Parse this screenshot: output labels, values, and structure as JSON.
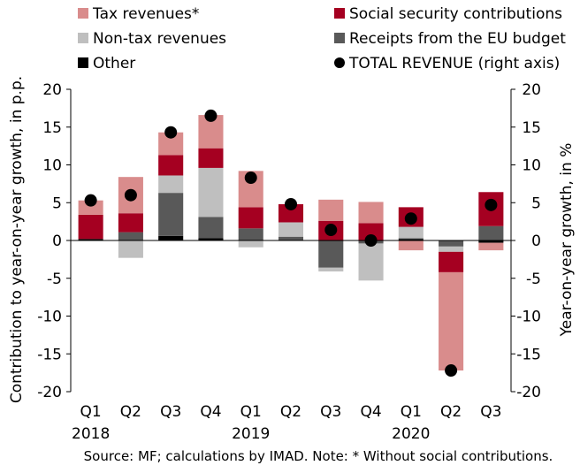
{
  "chart_data": {
    "type": "bar",
    "stacked": true,
    "categories": [
      "Q1",
      "Q2",
      "Q3",
      "Q4",
      "Q1",
      "Q2",
      "Q3",
      "Q4",
      "Q1",
      "Q2",
      "Q3"
    ],
    "years": [
      {
        "label": "2018",
        "start_index": 0
      },
      {
        "label": "2019",
        "start_index": 4
      },
      {
        "label": "2020",
        "start_index": 8
      }
    ],
    "ylabel": "Contribution to year-on-year growth, in p.p.",
    "y2label": "Year-on-year growth, in %",
    "ylim": [
      -20,
      20
    ],
    "y2lim": [
      -20,
      20
    ],
    "yticks": [
      -20,
      -15,
      -10,
      -5,
      0,
      5,
      10,
      15,
      20
    ],
    "legend_position": "top",
    "source_note": "Source: MF; calculations by IMAD. Note: * Without social contributions.",
    "series": [
      {
        "name": "Other",
        "kind": "bar",
        "color": "#000000",
        "values": [
          0.2,
          0.1,
          0.6,
          0.3,
          0.1,
          0.1,
          -0.1,
          -0.1,
          0.2,
          -0.1,
          -0.3
        ]
      },
      {
        "name": "Receipts from the EU budget",
        "kind": "bar",
        "color": "#595959",
        "values": [
          0.0,
          1.0,
          5.7,
          2.8,
          1.5,
          0.4,
          -3.5,
          -0.3,
          0.1,
          -0.7,
          1.9
        ]
      },
      {
        "name": "Non-tax revenues",
        "kind": "bar",
        "color": "#bfbfbf",
        "values": [
          0.0,
          -2.3,
          2.3,
          6.5,
          -0.9,
          1.9,
          -0.5,
          -4.9,
          1.5,
          -0.7,
          0.0
        ]
      },
      {
        "name": "Social security contributions",
        "kind": "bar",
        "color": "#a50021",
        "values": [
          3.2,
          2.5,
          2.7,
          2.6,
          2.8,
          2.4,
          2.6,
          2.3,
          2.6,
          -2.7,
          4.5
        ]
      },
      {
        "name": "Tax revenues*",
        "kind": "bar",
        "color": "#d98c8c",
        "values": [
          1.9,
          4.8,
          3.0,
          4.4,
          4.8,
          0.0,
          2.8,
          2.8,
          -1.3,
          -13.0,
          -1.0
        ]
      },
      {
        "name": "TOTAL REVENUE (right axis)",
        "kind": "dot",
        "axis": "right",
        "color": "#000000",
        "values": [
          5.3,
          6.0,
          14.3,
          16.5,
          8.3,
          4.8,
          1.4,
          0.0,
          2.9,
          -17.2,
          4.7
        ]
      }
    ],
    "legend_order": [
      "Tax revenues*",
      "Social security contributions",
      "Non-tax revenues",
      "Receipts from the EU budget",
      "Other",
      "TOTAL REVENUE (right axis)"
    ]
  }
}
